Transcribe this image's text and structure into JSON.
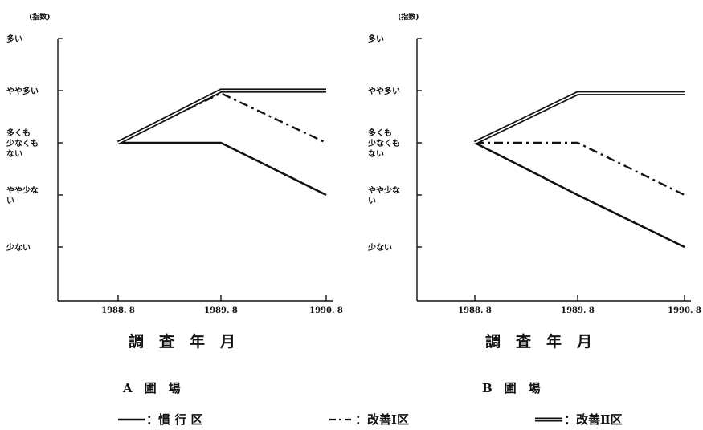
{
  "chart_data": [
    {
      "type": "line",
      "unit_label": "(指数)",
      "y_levels": [
        "多い",
        "やや多い",
        "多くも少なくもない",
        "やや少ない",
        "少ない"
      ],
      "y_values": [
        5,
        4,
        3,
        2,
        1
      ],
      "y_label_lines": [
        [
          "多い"
        ],
        [
          "やや多い"
        ],
        [
          "多くも",
          "少なくも",
          "ない"
        ],
        [
          "やや少な",
          "い"
        ],
        [
          "少ない"
        ]
      ],
      "ylim": [
        -0.1,
        5.1
      ],
      "categories": [
        "1988. 8",
        "1989. 8",
        "1990. 8"
      ],
      "xlabel": "調　査　年　月",
      "panel_label": "A　圃　場",
      "series": [
        {
          "name": "慣行区",
          "style": "solid",
          "values": [
            3,
            3,
            2
          ]
        },
        {
          "name": "改善Ⅰ区",
          "style": "dashdot",
          "values": [
            3,
            3.95,
            3
          ]
        },
        {
          "name": "改善Ⅱ区",
          "style": "double",
          "values": [
            3,
            4,
            4
          ]
        }
      ]
    },
    {
      "type": "line",
      "unit_label": "(指数)",
      "y_levels": [
        "多い",
        "やや多い",
        "多くも少なくもない",
        "やや少ない",
        "少ない"
      ],
      "y_values": [
        5,
        4,
        3,
        2,
        1
      ],
      "y_label_lines": [
        [
          "多い"
        ],
        [
          "やや多い"
        ],
        [
          "多くも",
          "少なくも",
          "ない"
        ],
        [
          "やや少な",
          "い"
        ],
        [
          "少ない"
        ]
      ],
      "ylim": [
        -0.1,
        5.1
      ],
      "categories": [
        "1988. 8",
        "1989. 8",
        "1990. 8"
      ],
      "xlabel": "調　査　年　月",
      "panel_label": "B　圃　場",
      "series": [
        {
          "name": "慣行区",
          "style": "solid",
          "values": [
            3,
            2,
            1
          ]
        },
        {
          "name": "改善Ⅰ区",
          "style": "dashdot",
          "values": [
            3,
            3,
            2
          ]
        },
        {
          "name": "改善Ⅱ区",
          "style": "double",
          "values": [
            3,
            3.95,
            3.95
          ]
        }
      ]
    }
  ],
  "legend": [
    {
      "style": "solid",
      "label": "：慣 行 区"
    },
    {
      "style": "dashdot",
      "label": "：改善Ⅰ区"
    },
    {
      "style": "double",
      "label": "：改善Ⅱ区"
    }
  ]
}
